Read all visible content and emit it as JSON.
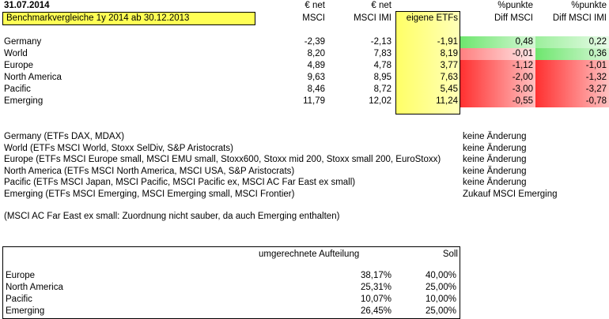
{
  "header": {
    "date": "31.07.2014",
    "title": "Benchmarkvergleiche 1y 2014 ab 30.12.2013"
  },
  "columns": [
    {
      "unit": "€ net",
      "name": "MSCI"
    },
    {
      "unit": "€ net",
      "name": "MSCI IMI"
    },
    {
      "unit": "",
      "name": "eigene ETFs"
    },
    {
      "unit": "%punkte",
      "name": "Diff MSCI"
    },
    {
      "unit": "%punkte",
      "name": "Diff MSCI IMI"
    }
  ],
  "rows": [
    {
      "region": "Germany",
      "cells": [
        "-2,39",
        "-2,13",
        "-1,91",
        "0,48",
        "0,22"
      ]
    },
    {
      "region": "World",
      "cells": [
        "8,20",
        "7,83",
        "8,19",
        "-0,01",
        "0,36"
      ]
    },
    {
      "region": "Europe",
      "cells": [
        "4,89",
        "4,78",
        "3,77",
        "-1,12",
        "-1,01"
      ]
    },
    {
      "region": "North America",
      "cells": [
        "9,63",
        "8,95",
        "7,63",
        "-2,00",
        "-1,32"
      ]
    },
    {
      "region": "Pacific",
      "cells": [
        "8,46",
        "8,72",
        "5,45",
        "-3,00",
        "-3,27"
      ]
    },
    {
      "region": "Emerging",
      "cells": [
        "11,79",
        "12,02",
        "11,24",
        "-0,55",
        "-0,78"
      ]
    }
  ],
  "notes": [
    {
      "text": "Germany (ETFs DAX, MDAX)",
      "status": "keine Änderung"
    },
    {
      "text": "World (ETFs MSCI World, Stoxx SelDiv, S&P Aristocrats)",
      "status": "keine Änderung"
    },
    {
      "text": "Europe (ETFs MSCI Europe small, MSCI EMU small, Stoxx600, Stoxx mid 200, Stoxx small 200, EuroStoxx)",
      "status": "keine Änderung"
    },
    {
      "text": "North America (ETFs MSCI North America, MSCI USA, S&P Aristocrats)",
      "status": "keine Änderung"
    },
    {
      "text": "Pacific (ETFs MSCI Japan, MSCI Pacific, MSCI Pacific ex, MSCI AC  Far East ex small)",
      "status": "keine Änderung"
    },
    {
      "text": "Emerging (ETFs MSCI Emerging, MSCI Emerging small, MSCI Frontier)",
      "status": "Zukauf MSCI Emerging"
    }
  ],
  "footnote": "(MSCI AC Far East ex small: Zuordnung nicht sauber, da auch Emerging enthalten)",
  "allocation": {
    "headers": [
      "umgerechnete Aufteilung",
      "Soll"
    ],
    "rows": [
      {
        "region": "Europe",
        "current": "38,17%",
        "target": "40,00%"
      },
      {
        "region": "North America",
        "current": "25,31%",
        "target": "25,00%"
      },
      {
        "region": "Pacific",
        "current": "10,07%",
        "target": "10,00%"
      },
      {
        "region": "Emerging",
        "current": "26,45%",
        "target": "25,00%"
      }
    ]
  }
}
